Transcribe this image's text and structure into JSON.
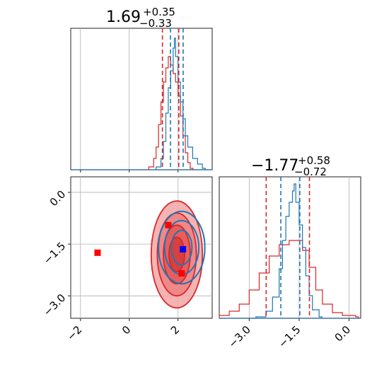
{
  "colors": {
    "red": "#d62728",
    "blue": "#1f77b4",
    "grid": "#b0b0b0",
    "red_marker": "#ff0000",
    "blue_marker": "#0000ff"
  },
  "chart_data": [
    {
      "panel": "top-left",
      "type": "histogram",
      "title": {
        "value": "1.69",
        "plus": "+0.35",
        "minus": "−0.33"
      },
      "xlim": [
        -2.4,
        3.4
      ],
      "xticks": [
        -2,
        0,
        2
      ],
      "quantiles_red": [
        1.36,
        2.03
      ],
      "quantiles_blue": [
        1.69,
        2.21
      ],
      "series": [
        {
          "name": "",
          "color": "red",
          "x": [
            0.8,
            1.0,
            1.1,
            1.2,
            1.3,
            1.4,
            1.5,
            1.6,
            1.7,
            1.8,
            1.9,
            2.0,
            2.1,
            2.2,
            2.3,
            2.4,
            2.5
          ],
          "y": [
            0.02,
            0.08,
            0.16,
            0.32,
            0.48,
            0.62,
            0.72,
            0.8,
            0.74,
            0.68,
            0.62,
            0.52,
            0.38,
            0.24,
            0.12,
            0.05,
            0.01
          ]
        },
        {
          "name": "",
          "color": "blue",
          "x": [
            1.1,
            1.3,
            1.4,
            1.5,
            1.6,
            1.7,
            1.8,
            1.85,
            1.9,
            2.0,
            2.1,
            2.2,
            2.3,
            2.4,
            2.6,
            2.8,
            3.0
          ],
          "y": [
            0.02,
            0.08,
            0.2,
            0.4,
            0.58,
            0.7,
            0.86,
            0.93,
            0.8,
            0.62,
            0.48,
            0.36,
            0.24,
            0.16,
            0.08,
            0.04,
            0.01
          ]
        }
      ]
    },
    {
      "panel": "bottom-left",
      "type": "scatter",
      "xlim": [
        -2.4,
        3.4
      ],
      "ylim": [
        -3.65,
        0.45
      ],
      "xticks": [
        -2,
        0,
        2
      ],
      "yticks": [
        0.0,
        -1.5,
        -3.0
      ],
      "xtick_labels": [
        "−2",
        "0",
        "2"
      ],
      "ytick_labels": [
        "0.0",
        "−1.5",
        "−3.0"
      ],
      "markers": [
        {
          "color": "red_marker",
          "x": -1.3,
          "y": -1.75
        },
        {
          "color": "red_marker",
          "x": 1.6,
          "y": -0.95
        },
        {
          "color": "red_marker",
          "x": 2.15,
          "y": -2.35
        },
        {
          "color": "blue_marker",
          "x": 2.2,
          "y": -1.65
        }
      ],
      "contours_red_center": [
        1.95,
        -1.8
      ],
      "contours_blue_center": [
        2.15,
        -1.6
      ]
    },
    {
      "panel": "bottom-right",
      "type": "histogram",
      "title": {
        "value": "−1.77",
        "plus": "+0.58",
        "minus": "−0.72"
      },
      "xlim": [
        -3.9,
        0.35
      ],
      "xticks": [
        -3.0,
        -1.5,
        0.0
      ],
      "xtick_labels": [
        "−3.0",
        "−1.5",
        "0.0"
      ],
      "quantiles_red": [
        -2.49,
        -1.19
      ],
      "quantiles_blue": [
        -2.05,
        -1.48
      ],
      "series": [
        {
          "name": "",
          "color": "red",
          "x": [
            -3.9,
            -3.6,
            -3.3,
            -3.0,
            -2.7,
            -2.4,
            -2.1,
            -1.8,
            -1.6,
            -1.4,
            -1.2,
            -1.0,
            -0.8,
            -0.5,
            -0.2,
            0.2
          ],
          "y": [
            0.02,
            0.05,
            0.1,
            0.2,
            0.32,
            0.44,
            0.52,
            0.55,
            0.55,
            0.48,
            0.36,
            0.2,
            0.1,
            0.04,
            0.02,
            0.01
          ]
        },
        {
          "name": "",
          "color": "blue",
          "x": [
            -2.8,
            -2.5,
            -2.3,
            -2.1,
            -2.0,
            -1.9,
            -1.8,
            -1.7,
            -1.65,
            -1.6,
            -1.5,
            -1.4,
            -1.3,
            -1.2,
            -1.1,
            -0.9
          ],
          "y": [
            0.01,
            0.05,
            0.15,
            0.35,
            0.55,
            0.72,
            0.82,
            0.9,
            0.95,
            0.82,
            0.66,
            0.5,
            0.3,
            0.16,
            0.06,
            0.01
          ]
        }
      ]
    }
  ]
}
